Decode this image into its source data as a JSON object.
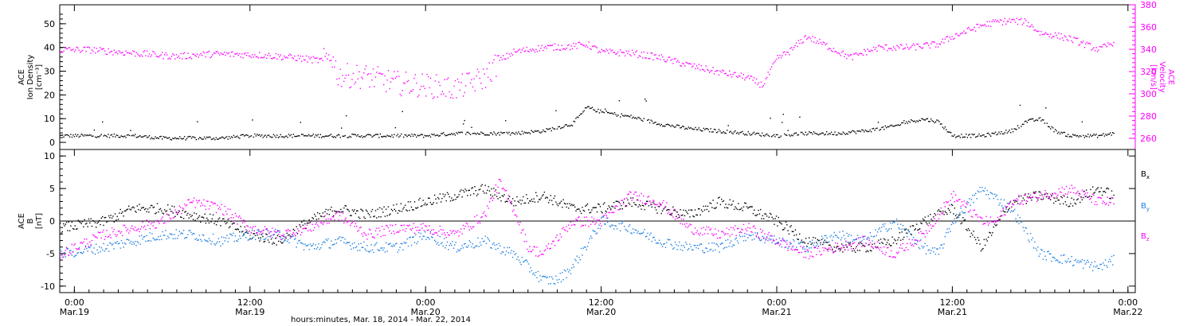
{
  "colors": {
    "axis": "#000000",
    "density": "#000000",
    "velocity": "#ff00ff",
    "bx": "#000000",
    "by": "#1f7fe0",
    "bz": "#ff00ff",
    "background": "#ffffff"
  },
  "x_axis": {
    "label": "hours:minutes, Mar. 18, 2014 - Mar. 22, 2014",
    "range_hours": [
      -1,
      72.5
    ],
    "ticks": [
      {
        "t": 0,
        "time": "0:00",
        "date": "Mar.19"
      },
      {
        "t": 12,
        "time": "12:00",
        "date": "Mar.19"
      },
      {
        "t": 24,
        "time": "0:00",
        "date": "Mar.20"
      },
      {
        "t": 36,
        "time": "12:00",
        "date": "Mar.20"
      },
      {
        "t": 48,
        "time": "0:00",
        "date": "Mar.21"
      },
      {
        "t": 60,
        "time": "12:00",
        "date": "Mar.21"
      },
      {
        "t": 72,
        "time": "0:00",
        "date": "Mar.22"
      }
    ]
  },
  "chart_data": [
    {
      "type": "scatter",
      "panel": "plasma",
      "ylabel_left": [
        "ACE",
        "Ion Density",
        "[cm⁻³]"
      ],
      "ylabel_right": [
        "ACE",
        "Velocity",
        "[km/s]"
      ],
      "ylim_left": [
        -3,
        58
      ],
      "ylim_right": [
        250,
        380
      ],
      "yticks_left": [
        0,
        10,
        20,
        30,
        40,
        50
      ],
      "yticks_right": [
        260,
        280,
        300,
        320,
        340,
        360,
        380
      ],
      "series": [
        {
          "axis": "left",
          "color_key": "density",
          "x": [
            -1,
            2,
            4,
            6,
            8,
            10,
            12,
            14,
            16,
            18,
            20,
            22,
            24,
            26,
            28,
            30,
            32,
            34,
            34.6,
            35,
            36,
            38,
            40,
            42,
            44,
            46,
            48,
            50,
            52,
            54,
            55,
            56,
            57,
            58,
            59,
            60,
            62,
            64,
            65,
            66,
            67,
            68,
            69,
            70,
            71
          ],
          "y": [
            3,
            3,
            3,
            2,
            2,
            2,
            3,
            3,
            3,
            3,
            3,
            3,
            3,
            4,
            4,
            4,
            5,
            8,
            12,
            15,
            13,
            11,
            8,
            6,
            5,
            4,
            3,
            4,
            4,
            5,
            6,
            7,
            9,
            10,
            9,
            3,
            3,
            5,
            9,
            10,
            5,
            3,
            3,
            3,
            4
          ]
        },
        {
          "axis": "right",
          "color_key": "velocity",
          "x": [
            -1,
            1,
            3,
            5,
            7,
            9,
            11,
            13,
            15,
            17,
            17.5,
            18,
            20,
            22,
            24,
            26,
            28,
            29,
            30,
            32,
            34,
            35,
            36,
            38,
            40,
            42,
            44,
            46,
            47,
            48,
            49,
            50,
            51,
            53,
            54,
            55,
            57,
            59,
            60,
            62,
            63,
            64,
            65,
            66,
            67,
            68,
            69,
            70,
            71
          ],
          "y": [
            340,
            340,
            338,
            336,
            334,
            336,
            336,
            335,
            333,
            330,
            336,
            317,
            316,
            310,
            308,
            305,
            315,
            330,
            338,
            342,
            343,
            345,
            338,
            337,
            333,
            326,
            320,
            315,
            308,
            332,
            340,
            352,
            346,
            333,
            338,
            342,
            342,
            345,
            352,
            362,
            365,
            366,
            365,
            355,
            353,
            350,
            345,
            340,
            347
          ]
        }
      ]
    },
    {
      "type": "scatter",
      "panel": "magnetic-field",
      "ylabel_left": [
        "ACE",
        "B",
        "[nT]"
      ],
      "ylim": [
        -11,
        11
      ],
      "yticks": [
        -10,
        -5,
        0,
        5,
        10
      ],
      "zero_line": true,
      "legend": [
        {
          "label": "B",
          "sub": "x",
          "color_key": "bx"
        },
        {
          "label": "B",
          "sub": "y",
          "color_key": "by"
        },
        {
          "label": "B",
          "sub": "z",
          "color_key": "bz"
        }
      ],
      "series": [
        {
          "name": "Bx",
          "color_key": "bx",
          "x": [
            -1,
            2,
            4,
            6,
            8,
            10,
            12,
            14,
            16,
            18,
            20,
            22,
            24,
            26,
            28,
            30,
            32,
            34,
            36,
            38,
            40,
            42,
            44,
            46,
            48,
            50,
            52,
            54,
            56,
            58,
            60,
            62,
            64,
            66,
            68,
            70,
            71
          ],
          "y": [
            -1,
            0,
            2,
            2,
            1,
            0,
            -2,
            -3,
            0,
            2,
            1,
            2,
            3,
            4,
            5,
            3,
            4,
            2,
            2,
            3,
            2,
            1,
            3,
            2,
            0,
            -3,
            -4,
            -4,
            -3,
            0,
            2,
            -4,
            3,
            4,
            3,
            5,
            4
          ]
        },
        {
          "name": "By",
          "color_key": "by",
          "x": [
            -1,
            2,
            4,
            6,
            8,
            10,
            12,
            14,
            16,
            18,
            20,
            22,
            24,
            26,
            28,
            30,
            31,
            32,
            33,
            34,
            36,
            38,
            40,
            42,
            44,
            46,
            48,
            50,
            52,
            54,
            56,
            58,
            59,
            60,
            62,
            64,
            66,
            68,
            70,
            71
          ],
          "y": [
            -5,
            -4,
            -3,
            -2,
            -2,
            -3,
            -2,
            -2,
            -4,
            -3,
            -4,
            -4,
            -2,
            -4,
            -3,
            -5,
            -7,
            -9,
            -9,
            -7,
            0,
            -1,
            -3,
            -4,
            -4,
            -2,
            -3,
            -4,
            -2,
            -3,
            0,
            -4,
            -5,
            0,
            5,
            2,
            -5,
            -6,
            -7,
            -6
          ]
        },
        {
          "name": "Bz",
          "color_key": "bz",
          "x": [
            -1,
            2,
            4,
            6,
            8,
            10,
            12,
            14,
            16,
            18,
            20,
            22,
            24,
            26,
            28,
            29,
            30,
            31,
            32,
            34,
            36,
            38,
            40,
            42,
            44,
            46,
            48,
            50,
            52,
            54,
            56,
            58,
            60,
            62,
            63,
            64,
            66,
            68,
            70,
            71
          ],
          "y": [
            -5,
            -2,
            -1,
            0,
            3,
            2,
            -1,
            -2,
            -1,
            1,
            -2,
            -1,
            -1,
            -2,
            1,
            6,
            2,
            -4,
            -5,
            0,
            0,
            4,
            3,
            -1,
            -2,
            -1,
            -3,
            -5,
            -4,
            -3,
            -5,
            -2,
            4,
            0,
            0,
            3,
            4,
            5,
            3,
            3
          ]
        }
      ]
    }
  ]
}
